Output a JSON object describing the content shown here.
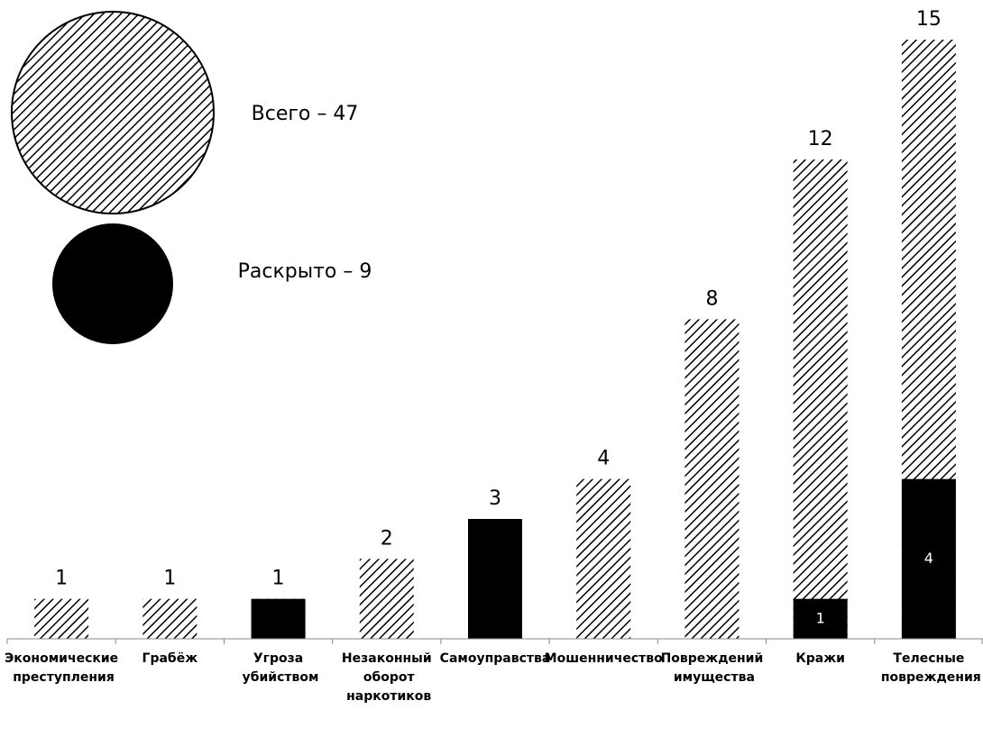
{
  "chart_data": {
    "type": "bar",
    "categories": [
      "Экономические преступления",
      "Грабёж",
      "Угроза убийством",
      "Незаконный оборот наркотиков",
      "Самоуправства",
      "Мошенничество",
      "Повреждений имущества",
      "Кражи",
      "Телесные повреждения"
    ],
    "series": [
      {
        "name": "Всего – 47",
        "color": "#000000",
        "pattern": "hatch",
        "values": [
          1,
          1,
          1,
          2,
          3,
          4,
          8,
          12,
          15
        ]
      },
      {
        "name": "Раскрыто – 9",
        "color": "#000000",
        "pattern": "solid",
        "values": [
          0,
          0,
          1,
          0,
          3,
          0,
          0,
          1,
          4
        ]
      }
    ],
    "ylim": [
      0,
      15
    ]
  }
}
